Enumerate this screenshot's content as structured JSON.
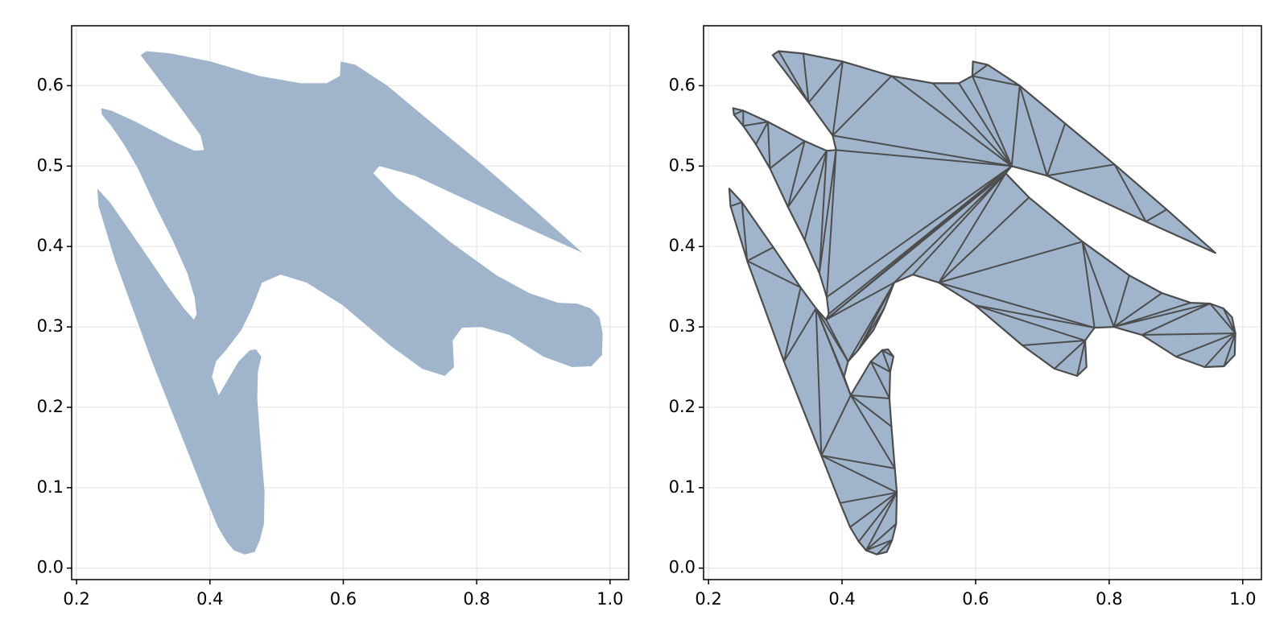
{
  "chart_data": [
    {
      "type": "polygon",
      "color": "#a0b5cc",
      "grid": true,
      "xlim": [
        0.1926,
        1.028
      ],
      "ylim": [
        -0.0143,
        0.6745
      ],
      "xticks": [
        0.2,
        0.4,
        0.6,
        0.8,
        {
          "value": 1,
          "label": "1.0"
        }
      ],
      "yticks": [
        {
          "value": 0,
          "label": "0.0"
        },
        0.1,
        0.2,
        0.3,
        0.4,
        0.5,
        0.6
      ],
      "x": [
        0.296,
        0.305,
        0.342,
        0.401,
        0.474,
        0.536,
        0.575,
        0.595,
        0.596,
        0.618,
        0.666,
        0.734,
        0.808,
        0.886,
        0.959,
        0.855,
        0.707,
        0.654,
        0.645,
        0.68,
        0.76,
        0.83,
        0.879,
        0.922,
        0.951,
        0.971,
        0.984,
        0.989,
        0.988,
        0.972,
        0.943,
        0.9,
        0.849,
        0.807,
        0.778,
        0.764,
        0.766,
        0.752,
        0.718,
        0.67,
        0.599,
        0.545,
        0.506,
        0.478,
        0.463,
        0.447,
        0.424,
        0.409,
        0.403,
        0.413,
        0.443,
        0.46,
        0.469,
        0.477,
        0.472,
        0.471,
        0.474,
        0.479,
        0.482,
        0.481,
        0.475,
        0.467,
        0.452,
        0.436,
        0.425,
        0.412,
        0.397,
        0.369,
        0.313,
        0.258,
        0.233,
        0.231,
        0.25,
        0.297,
        0.338,
        0.361,
        0.376,
        0.38,
        0.377,
        0.366,
        0.344,
        0.319,
        0.292,
        0.271,
        0.252,
        0.238,
        0.237,
        0.252,
        0.289,
        0.344,
        0.377,
        0.391,
        0.386,
        0.35
      ],
      "y": [
        0.638,
        0.643,
        0.64,
        0.63,
        0.612,
        0.603,
        0.603,
        0.612,
        0.63,
        0.626,
        0.6,
        0.553,
        0.502,
        0.446,
        0.392,
        0.431,
        0.488,
        0.5,
        0.491,
        0.461,
        0.406,
        0.364,
        0.342,
        0.33,
        0.329,
        0.323,
        0.312,
        0.292,
        0.265,
        0.251,
        0.25,
        0.263,
        0.29,
        0.3,
        0.299,
        0.283,
        0.25,
        0.239,
        0.248,
        0.277,
        0.327,
        0.355,
        0.365,
        0.355,
        0.323,
        0.296,
        0.271,
        0.257,
        0.238,
        0.215,
        0.257,
        0.271,
        0.272,
        0.263,
        0.244,
        0.211,
        0.176,
        0.124,
        0.094,
        0.055,
        0.035,
        0.02,
        0.017,
        0.022,
        0.033,
        0.051,
        0.081,
        0.14,
        0.257,
        0.382,
        0.45,
        0.472,
        0.455,
        0.399,
        0.349,
        0.323,
        0.309,
        0.316,
        0.337,
        0.367,
        0.408,
        0.449,
        0.497,
        0.527,
        0.55,
        0.564,
        0.572,
        0.569,
        0.555,
        0.531,
        0.519,
        0.52,
        0.538,
        0.579
      ]
    },
    {
      "type": "triangulation",
      "color": "#a0b5cc",
      "edge_color": "#4d4d4d",
      "grid": true,
      "xlim": [
        0.1926,
        1.028
      ],
      "ylim": [
        -0.0143,
        0.6745
      ],
      "xticks": [
        0.2,
        0.4,
        0.6,
        0.8,
        {
          "value": 1,
          "label": "1.0"
        }
      ],
      "yticks": [
        {
          "value": 0,
          "label": "0.0"
        },
        0.1,
        0.2,
        0.3,
        0.4,
        0.5,
        0.6
      ],
      "x": [
        0.296,
        0.305,
        0.342,
        0.401,
        0.474,
        0.536,
        0.575,
        0.595,
        0.596,
        0.618,
        0.666,
        0.734,
        0.808,
        0.886,
        0.959,
        0.855,
        0.707,
        0.654,
        0.645,
        0.68,
        0.76,
        0.83,
        0.879,
        0.922,
        0.951,
        0.971,
        0.984,
        0.989,
        0.988,
        0.972,
        0.943,
        0.9,
        0.849,
        0.807,
        0.778,
        0.764,
        0.766,
        0.752,
        0.718,
        0.67,
        0.599,
        0.545,
        0.506,
        0.478,
        0.463,
        0.447,
        0.424,
        0.409,
        0.403,
        0.413,
        0.443,
        0.46,
        0.469,
        0.477,
        0.472,
        0.471,
        0.474,
        0.479,
        0.482,
        0.481,
        0.475,
        0.467,
        0.452,
        0.436,
        0.425,
        0.412,
        0.397,
        0.369,
        0.313,
        0.258,
        0.233,
        0.231,
        0.25,
        0.297,
        0.338,
        0.361,
        0.376,
        0.38,
        0.377,
        0.366,
        0.344,
        0.319,
        0.292,
        0.271,
        0.252,
        0.238,
        0.237,
        0.252,
        0.289,
        0.344,
        0.377,
        0.391,
        0.386,
        0.35
      ],
      "y": [
        0.638,
        0.643,
        0.64,
        0.63,
        0.612,
        0.603,
        0.603,
        0.612,
        0.63,
        0.626,
        0.6,
        0.553,
        0.502,
        0.446,
        0.392,
        0.431,
        0.488,
        0.5,
        0.491,
        0.461,
        0.406,
        0.364,
        0.342,
        0.33,
        0.329,
        0.323,
        0.312,
        0.292,
        0.265,
        0.251,
        0.25,
        0.263,
        0.29,
        0.3,
        0.299,
        0.283,
        0.25,
        0.239,
        0.248,
        0.277,
        0.327,
        0.355,
        0.365,
        0.355,
        0.323,
        0.296,
        0.271,
        0.257,
        0.238,
        0.215,
        0.257,
        0.271,
        0.272,
        0.263,
        0.244,
        0.211,
        0.176,
        0.124,
        0.094,
        0.055,
        0.035,
        0.02,
        0.017,
        0.022,
        0.033,
        0.051,
        0.081,
        0.14,
        0.257,
        0.382,
        0.45,
        0.472,
        0.455,
        0.399,
        0.349,
        0.323,
        0.309,
        0.316,
        0.337,
        0.367,
        0.408,
        0.449,
        0.497,
        0.527,
        0.55,
        0.564,
        0.572,
        0.569,
        0.555,
        0.531,
        0.519,
        0.52,
        0.538,
        0.579
      ]
    }
  ]
}
